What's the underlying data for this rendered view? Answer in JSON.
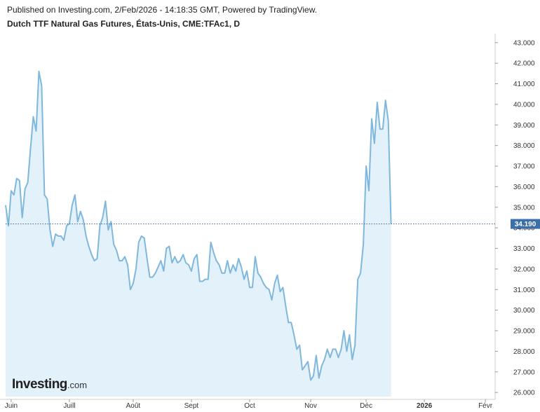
{
  "header": {
    "publisher_line": "Published on Investing.com, 2/Feb/2026 - 14:18:35 GMT, Powered by TradingView.",
    "title": "Dutch TTF Natural Gas Futures, États-Unis, CME:TFAc1, D"
  },
  "logo": {
    "main": "Investing",
    "suffix": ".com"
  },
  "colors": {
    "line": "#7fb8dc",
    "fill": "#e3f1fa",
    "last_price_line": "#3d5f8a",
    "last_price_bg": "#3c6ea8"
  },
  "chart_data": {
    "type": "area",
    "x_labels": [
      {
        "label": "Juin",
        "index": 2
      },
      {
        "label": "Juill",
        "index": 23
      },
      {
        "label": "Août",
        "index": 46
      },
      {
        "label": "Sept",
        "index": 67
      },
      {
        "label": "Oct",
        "index": 88
      },
      {
        "label": "Nov",
        "index": 110
      },
      {
        "label": "Déc",
        "index": 130
      },
      {
        "label": "2026",
        "index": 151
      },
      {
        "label": "Févr",
        "index": 173
      }
    ],
    "y_ticks": [
      "26.000",
      "27.000",
      "28.000",
      "29.000",
      "30.000",
      "31.000",
      "32.000",
      "33.000",
      "34.000",
      "35.000",
      "36.000",
      "37.000",
      "38.000",
      "39.000",
      "40.000",
      "41.000",
      "42.000",
      "43.000"
    ],
    "ylim": [
      25.8,
      43.3
    ],
    "xlim": [
      0,
      175
    ],
    "grid": false,
    "last_price": "34.190",
    "last_value": 34.19,
    "values": [
      35.1,
      34.1,
      35.8,
      35.6,
      36.4,
      36.3,
      34.5,
      35.9,
      36.2,
      37.9,
      39.4,
      38.7,
      41.6,
      40.9,
      35.6,
      35.4,
      33.9,
      33.1,
      33.7,
      33.6,
      33.6,
      33.4,
      34.1,
      34.2,
      35.1,
      35.6,
      34.3,
      34.8,
      34.4,
      33.6,
      33.1,
      32.7,
      32.4,
      32.5,
      34.1,
      34.5,
      35.3,
      33.9,
      34.3,
      33.2,
      32.9,
      32.4,
      32.4,
      32.6,
      32.2,
      31.0,
      31.3,
      32.0,
      33.3,
      33.6,
      33.5,
      32.5,
      31.6,
      31.6,
      31.8,
      32.1,
      32.4,
      31.9,
      33.0,
      33.1,
      32.3,
      32.6,
      32.3,
      32.4,
      32.7,
      32.3,
      32.2,
      31.9,
      32.5,
      32.7,
      31.4,
      31.4,
      31.5,
      31.5,
      33.3,
      32.8,
      32.4,
      32.2,
      31.8,
      31.8,
      32.4,
      31.8,
      32.2,
      31.9,
      32.5,
      32.1,
      31.5,
      31.9,
      31.1,
      31.1,
      32.6,
      31.8,
      31.6,
      31.3,
      31.1,
      31.0,
      30.5,
      31.3,
      31.7,
      30.9,
      31.1,
      30.2,
      29.4,
      29.4,
      28.8,
      28.1,
      28.3,
      27.1,
      27.3,
      27.5,
      26.6,
      26.8,
      27.8,
      26.7,
      27.3,
      27.6,
      28.1,
      27.7,
      28.1,
      28.1,
      27.7,
      28.1,
      29.0,
      28.0,
      28.8,
      27.6,
      28.3,
      31.5,
      31.8,
      33.2,
      37.0,
      35.8,
      39.3,
      38.1,
      40.1,
      38.8,
      38.8,
      40.2,
      39.2,
      34.19
    ]
  }
}
